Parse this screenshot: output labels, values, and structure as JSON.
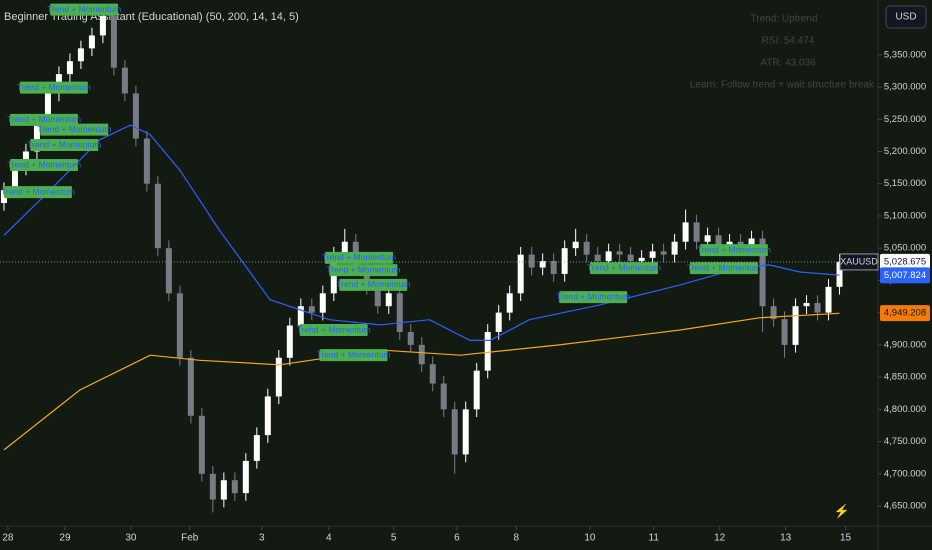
{
  "chart_data": {
    "type": "candlestick",
    "indicator_title": "Beginner Trading Assistant (Educational) (50, 200, 14, 14, 5)",
    "currency": "USD",
    "info_panel": [
      "Trend: Uptrend",
      "RSI: 54.474",
      "ATR: 43.036",
      "Learn: Follow trend + wait structure break"
    ],
    "x": [
      0,
      1,
      2,
      3,
      4,
      5,
      6,
      7,
      8,
      9,
      10,
      11,
      12,
      13,
      14,
      15,
      16,
      17,
      18,
      19,
      20,
      21,
      22,
      23,
      24,
      25,
      26,
      27,
      28,
      29,
      30,
      31,
      32,
      33,
      34,
      35,
      36,
      37,
      38,
      39,
      40,
      41,
      42,
      43,
      44,
      45,
      46,
      47,
      48,
      49,
      50,
      51,
      52,
      53,
      54,
      55,
      56,
      57,
      58,
      59,
      60,
      61,
      62,
      63,
      64,
      65,
      66,
      67,
      68,
      69,
      70,
      71,
      72,
      73,
      74,
      75,
      76
    ],
    "open": [
      5120,
      5140,
      5175,
      5200,
      5240,
      5290,
      5320,
      5340,
      5360,
      5380,
      5410,
      5330,
      5290,
      5220,
      5150,
      5050,
      4980,
      4880,
      4790,
      4700,
      4660,
      4690,
      4670,
      4720,
      4760,
      4820,
      4880,
      4930,
      4960,
      4950,
      4980,
      5040,
      5060,
      5020,
      4990,
      4960,
      4980,
      4920,
      4900,
      4870,
      4840,
      4800,
      4730,
      4800,
      4860,
      4920,
      4950,
      4980,
      5040,
      5020,
      5030,
      5010,
      5050,
      5060,
      5040,
      5030,
      5045,
      5040,
      5030,
      5035,
      5045,
      5040,
      5060,
      5090,
      5060,
      5070,
      5050,
      5060,
      5055,
      5065,
      4960,
      4940,
      4900,
      4960,
      4965,
      4950,
      4990
    ],
    "high": [
      5152,
      5187,
      5212,
      5252,
      5302,
      5332,
      5352,
      5372,
      5392,
      5425,
      5422,
      5342,
      5302,
      5232,
      5162,
      5062,
      4992,
      4892,
      4802,
      4712,
      4702,
      4702,
      4732,
      4772,
      4832,
      4892,
      4942,
      4972,
      4972,
      4992,
      5052,
      5080,
      5072,
      5032,
      5002,
      4992,
      4992,
      4932,
      4912,
      4882,
      4852,
      4812,
      4812,
      4872,
      4932,
      4962,
      4992,
      5052,
      5052,
      5042,
      5042,
      5062,
      5080,
      5072,
      5052,
      5057,
      5057,
      5052,
      5047,
      5057,
      5057,
      5072,
      5110,
      5102,
      5082,
      5082,
      5072,
      5072,
      5077,
      5077,
      4972,
      4952,
      4972,
      4977,
      4977,
      5002,
      5041
    ],
    "low": [
      5108,
      5128,
      5163,
      5188,
      5228,
      5278,
      5308,
      5328,
      5348,
      5368,
      5318,
      5278,
      5208,
      5138,
      5038,
      4968,
      4868,
      4778,
      4688,
      4640,
      4648,
      4658,
      4658,
      4708,
      4748,
      4808,
      4868,
      4918,
      4938,
      4938,
      4968,
      5028,
      5008,
      4978,
      4948,
      4948,
      4908,
      4888,
      4858,
      4828,
      4788,
      4700,
      4718,
      4788,
      4848,
      4908,
      4938,
      4968,
      5008,
      5008,
      4998,
      4998,
      5038,
      5028,
      5018,
      5018,
      5028,
      5018,
      5018,
      5023,
      5028,
      5028,
      5048,
      5048,
      5048,
      5038,
      5038,
      5043,
      5043,
      4920,
      4928,
      4880,
      4888,
      4948,
      4938,
      4938,
      4978
    ],
    "close": [
      5140,
      5175,
      5200,
      5240,
      5290,
      5320,
      5340,
      5360,
      5380,
      5410,
      5330,
      5290,
      5220,
      5150,
      5050,
      4980,
      4880,
      4790,
      4700,
      4660,
      4690,
      4670,
      4720,
      4760,
      4820,
      4880,
      4930,
      4960,
      4950,
      4980,
      5040,
      5060,
      5020,
      4990,
      4960,
      4980,
      4920,
      4900,
      4870,
      4840,
      4800,
      4730,
      4800,
      4860,
      4920,
      4950,
      4980,
      5040,
      5020,
      5030,
      5010,
      5050,
      5060,
      5040,
      5030,
      5045,
      5040,
      5030,
      5035,
      5045,
      5040,
      5060,
      5090,
      5060,
      5070,
      5050,
      5060,
      5055,
      5065,
      4960,
      4940,
      4900,
      4960,
      4965,
      4950,
      4990,
      5029
    ],
    "up_color": "#ffffff",
    "down_color": "#787b86",
    "lines": [
      {
        "color": "#2962ff",
        "x": [
          0,
          4.2,
          8.7,
          11.5,
          13.3,
          16,
          19.6,
          24.2,
          29.6,
          34.2,
          38.7,
          42.4,
          44.2,
          47.8,
          54.2,
          61.5,
          66.9,
          69.6,
          72.4,
          76
        ],
        "values": [
          5070,
          5140,
          5218,
          5241,
          5226,
          5171,
          5078,
          4970,
          4939,
          4931,
          4939,
          4907,
          4907,
          4939,
          4962,
          4993,
          5019,
          5024,
          5013,
          5008
        ]
      },
      {
        "color": "#f5a623",
        "x": [
          0,
          6.9,
          13.3,
          17.8,
          25.1,
          34.2,
          41.5,
          50.5,
          61.5,
          68.7,
          76
        ],
        "values": [
          4737,
          4830,
          4884,
          4876,
          4869,
          4892,
          4884,
          4900,
          4923,
          4942,
          4949
        ]
      }
    ],
    "price_labels": [
      {
        "name": "XAUUSD",
        "value": 5028.675,
        "label": "5,028.675",
        "color": "#ffffff",
        "text_color": "#131722"
      },
      {
        "value": 5007.824,
        "label": "5,007.824",
        "color": "#2962ff",
        "text_color": "#ffffff"
      },
      {
        "value": 4949.208,
        "label": "4,949.208",
        "color": "#f57c00",
        "text_color": "#131722"
      }
    ],
    "annotation_color": "#4caf50",
    "annotations": [
      {
        "text": "Trend + Momentum",
        "x": 4.2,
        "y": 5420
      },
      {
        "text": "Trend + Momentum",
        "x": 1.45,
        "y": 5299
      },
      {
        "text": "Trend + Momentum",
        "x": 0.55,
        "y": 5249
      },
      {
        "text": "Trend + Momentum",
        "x": 3.3,
        "y": 5234
      },
      {
        "text": "Trend + Momentum",
        "x": 2.4,
        "y": 5210
      },
      {
        "text": "Trend + Momentum",
        "x": 0.55,
        "y": 5179
      },
      {
        "text": "Trend + Momentum",
        "x": 0,
        "y": 5137
      },
      {
        "text": "Trend + Momentum",
        "x": 29.2,
        "y": 5035
      },
      {
        "text": "Trend + Momentum",
        "x": 29.6,
        "y": 5016
      },
      {
        "text": "Trend + Momentum",
        "x": 30.5,
        "y": 4993
      },
      {
        "text": "Trend + Momentum",
        "x": 26.9,
        "y": 4923
      },
      {
        "text": "Trend + Momentum",
        "x": 28.7,
        "y": 4884
      },
      {
        "text": "Trend + Momentum",
        "x": 50.5,
        "y": 4974
      },
      {
        "text": "Trend + Momentum",
        "x": 53.3,
        "y": 5019
      },
      {
        "text": "Trend + Momentum",
        "x": 62.4,
        "y": 5019
      },
      {
        "text": "Trend + Momentum",
        "x": 63.3,
        "y": 5047
      }
    ],
    "xlim": [
      -0.36,
      79.5
    ],
    "xticks": [
      {
        "value": 0.36,
        "label": "28"
      },
      {
        "value": 5.55,
        "label": "29"
      },
      {
        "value": 11.55,
        "label": "30"
      },
      {
        "value": 16.9,
        "label": "Feb"
      },
      {
        "value": 23.45,
        "label": "3"
      },
      {
        "value": 29.55,
        "label": "4"
      },
      {
        "value": 35.45,
        "label": "5"
      },
      {
        "value": 41.2,
        "label": "6"
      },
      {
        "value": 46.6,
        "label": "8"
      },
      {
        "value": 53.3,
        "label": "10"
      },
      {
        "value": 59.1,
        "label": "11"
      },
      {
        "value": 65.1,
        "label": "12"
      },
      {
        "value": 71.1,
        "label": "13"
      },
      {
        "value": 76.55,
        "label": "15"
      }
    ],
    "ylim": [
      4619,
      5435
    ],
    "yticks": [
      {
        "value": 4650,
        "label": "4,650.000"
      },
      {
        "value": 4700,
        "label": "4,700.000"
      },
      {
        "value": 4750,
        "label": "4,750.000"
      },
      {
        "value": 4800,
        "label": "4,800.000"
      },
      {
        "value": 4850,
        "label": "4,850.000"
      },
      {
        "value": 4900,
        "label": "4,900.000"
      },
      {
        "value": 4950,
        "label": "4,950.000"
      },
      {
        "value": 5000,
        "label": "5,000.000"
      },
      {
        "value": 5050,
        "label": "5,050.000"
      },
      {
        "value": 5100,
        "label": "5,100.000"
      },
      {
        "value": 5150,
        "label": "5,150.000"
      },
      {
        "value": 5200,
        "label": "5,200.000"
      },
      {
        "value": 5250,
        "label": "5,250.000"
      },
      {
        "value": 5300,
        "label": "5,300.000"
      },
      {
        "value": 5350,
        "label": "5,350.000"
      }
    ]
  }
}
